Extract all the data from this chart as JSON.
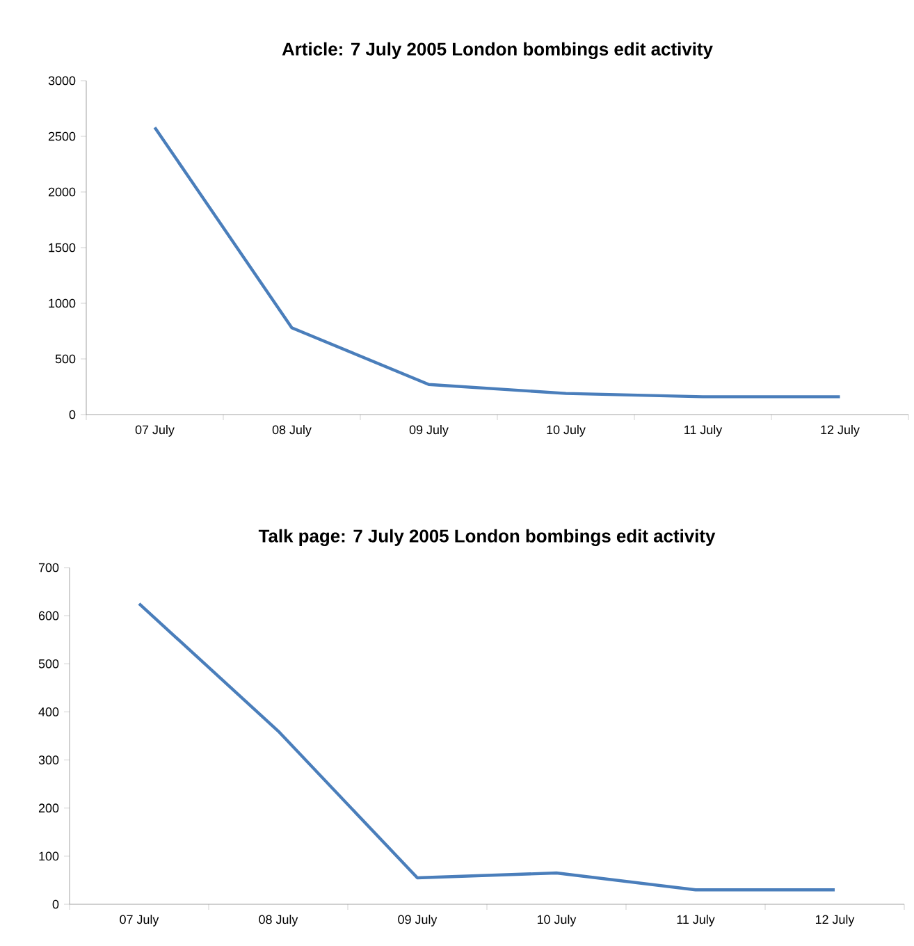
{
  "chart_data": [
    {
      "type": "line",
      "title": "Article: 7 July 2005 London bombings edit activity",
      "categories": [
        "07 July",
        "08 July",
        "09 July",
        "10 July",
        "11 July",
        "12 July"
      ],
      "series": [
        {
          "color": "#4a7ebb",
          "values": [
            2580,
            780,
            270,
            190,
            160,
            160
          ]
        }
      ],
      "ylim": [
        0,
        3000
      ],
      "yticks": [
        0,
        500,
        1000,
        1500,
        2000,
        2500,
        3000
      ],
      "marker": "none",
      "line_style": "solid"
    },
    {
      "type": "line",
      "title": "Talk page: 7 July 2005 London bombings edit activity",
      "categories": [
        "07 July",
        "08 July",
        "09 July",
        "10 July",
        "11 July",
        "12 July"
      ],
      "series": [
        {
          "color": "#4a7ebb",
          "values": [
            625,
            360,
            55,
            65,
            30,
            30
          ]
        }
      ],
      "ylim": [
        0,
        700
      ],
      "yticks": [
        0,
        100,
        200,
        300,
        400,
        500,
        600,
        700
      ],
      "marker": "none",
      "line_style": "solid"
    }
  ]
}
